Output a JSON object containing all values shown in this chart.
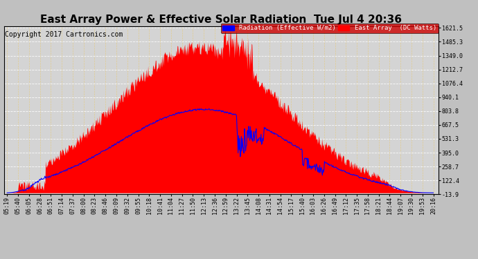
{
  "title": "East Array Power & Effective Solar Radiation  Tue Jul 4 20:36",
  "copyright": "Copyright 2017 Cartronics.com",
  "legend_items": [
    "Radiation (Effective W/m2)",
    "East Array  (DC Watts)"
  ],
  "legend_colors": [
    "#0000FF",
    "#FF0000"
  ],
  "ymin": -13.9,
  "ymax": 1621.5,
  "yticks": [
    -13.9,
    122.4,
    258.7,
    395.0,
    531.3,
    667.5,
    803.8,
    940.1,
    1076.4,
    1212.7,
    1349.0,
    1485.3,
    1621.5
  ],
  "bg_color": "#C0C0C0",
  "plot_bg": "#D4D4D4",
  "title_fontsize": 11,
  "copyright_fontsize": 7,
  "tick_fontsize": 6,
  "xtick_labels": [
    "05:19",
    "05:40",
    "06:05",
    "06:28",
    "06:51",
    "07:14",
    "07:37",
    "08:00",
    "08:23",
    "08:46",
    "09:09",
    "09:32",
    "09:55",
    "10:18",
    "10:41",
    "11:04",
    "11:27",
    "11:50",
    "12:13",
    "12:36",
    "12:59",
    "13:22",
    "13:45",
    "14:08",
    "14:31",
    "14:54",
    "15:17",
    "15:40",
    "16:03",
    "16:26",
    "16:49",
    "17:12",
    "17:35",
    "17:58",
    "18:21",
    "18:44",
    "19:07",
    "19:30",
    "19:53",
    "20:16"
  ],
  "num_points": 800
}
